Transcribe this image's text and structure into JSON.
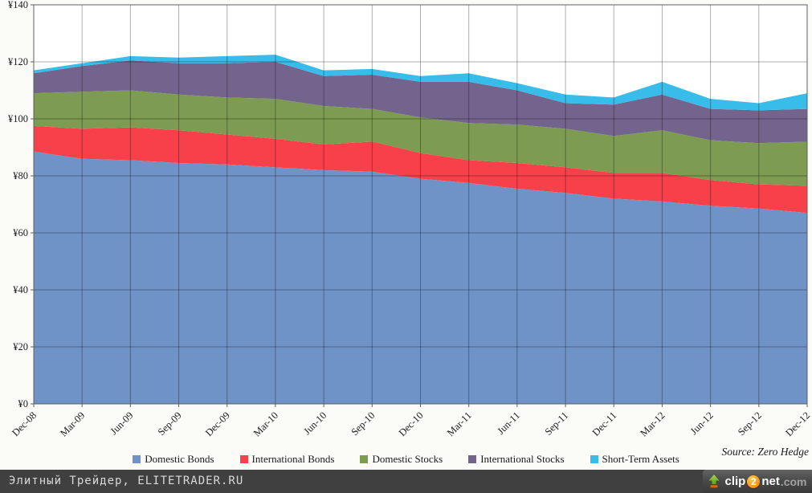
{
  "chart_data": {
    "type": "area",
    "stacked": true,
    "title": "",
    "categories": [
      "Dec-08",
      "Mar-09",
      "Jun-09",
      "Sep-09",
      "Dec-09",
      "Mar-10",
      "Jun-10",
      "Sep-10",
      "Dec-10",
      "Mar-11",
      "Jun-11",
      "Sep-11",
      "Dec-11",
      "Mar-12",
      "Jun-12",
      "Sep-12",
      "Dec-12"
    ],
    "series": [
      {
        "name": "Domestic Bonds",
        "color": "#6F93C6",
        "values": [
          88.5,
          86,
          85.5,
          84.5,
          84,
          83,
          82,
          81.5,
          79,
          77.5,
          75.5,
          74,
          72,
          71,
          69.5,
          68.5,
          67
        ]
      },
      {
        "name": "International Bonds",
        "color": "#F7404A",
        "values": [
          9,
          10.5,
          11.5,
          11.5,
          10.5,
          10,
          9,
          10.5,
          9,
          8,
          9,
          9,
          9,
          10,
          9,
          8.5,
          9.5
        ]
      },
      {
        "name": "Domestic Stocks",
        "color": "#7D9B51",
        "values": [
          11.5,
          13,
          13,
          12.5,
          13,
          14,
          13.5,
          11.5,
          12.5,
          13,
          13.5,
          13.5,
          13,
          15,
          14,
          14.5,
          15.5
        ]
      },
      {
        "name": "International Stocks",
        "color": "#73648E",
        "values": [
          7,
          9,
          10.5,
          11,
          12,
          13,
          10.5,
          12,
          12.5,
          14.5,
          12,
          9,
          11,
          12.5,
          11,
          11.5,
          11.5
        ]
      },
      {
        "name": "Short-Term Assets",
        "color": "#38BCE9",
        "values": [
          1,
          1,
          1.5,
          2,
          2.5,
          2.5,
          2,
          2,
          2,
          3,
          2.5,
          3,
          2.5,
          4.5,
          3.5,
          2.5,
          5.5
        ]
      }
    ],
    "ylim": [
      0,
      140
    ],
    "y_tick_step": 20,
    "y_tick_labels": [
      "¥0",
      "¥20",
      "¥40",
      "¥60",
      "¥80",
      "¥100",
      "¥120",
      "¥140"
    ],
    "x_tick_rotation": -45,
    "grid": true,
    "legend_position": "bottom",
    "source_note": "Source: Zero Hedge"
  },
  "footer": {
    "site_label": "Элитный Трейдер, ELITETRADER.RU",
    "logo": {
      "clip": "clip",
      "two": "2",
      "net": "net",
      "com": ".com"
    }
  }
}
